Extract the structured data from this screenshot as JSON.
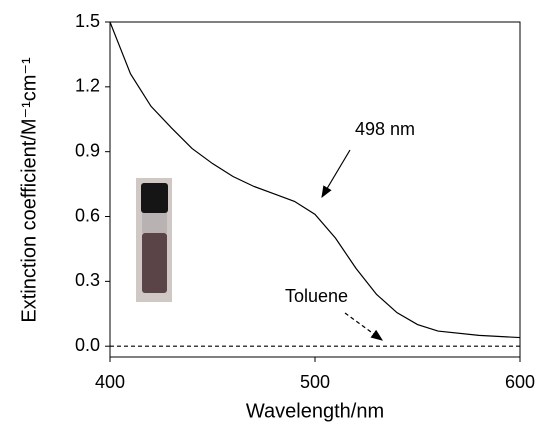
{
  "chart_data": {
    "type": "line",
    "x_label": "Wavelength/nm",
    "y_label": "Extinction coefficient/M⁻¹cm⁻¹",
    "x": [
      400,
      405,
      410,
      420,
      430,
      440,
      450,
      460,
      470,
      480,
      490,
      500,
      510,
      520,
      530,
      540,
      550,
      560,
      580,
      600
    ],
    "series": [
      {
        "color": "#000000",
        "dash": false,
        "values": [
          1.5,
          1.38,
          1.26,
          1.11,
          1.01,
          0.915,
          0.845,
          0.785,
          0.74,
          0.705,
          0.67,
          0.61,
          0.5,
          0.36,
          0.24,
          0.155,
          0.1,
          0.07,
          0.05,
          0.04
        ]
      },
      {
        "color": "#000000",
        "dash": true,
        "values": [
          0,
          0,
          0,
          0,
          0,
          0,
          0,
          0,
          0,
          0,
          0,
          0,
          0,
          0,
          0,
          0,
          0,
          0,
          0,
          0
        ]
      }
    ],
    "annotations": [
      "498 nm",
      "Toluene"
    ],
    "xlim": [
      400,
      600
    ],
    "xticks": [
      400,
      500,
      600
    ],
    "ylim": [
      -0.05,
      1.5
    ],
    "yticks": [
      {
        "value": 0,
        "label": "0.0"
      },
      0.3,
      0.6,
      0.9,
      1.2,
      1.5
    ]
  }
}
